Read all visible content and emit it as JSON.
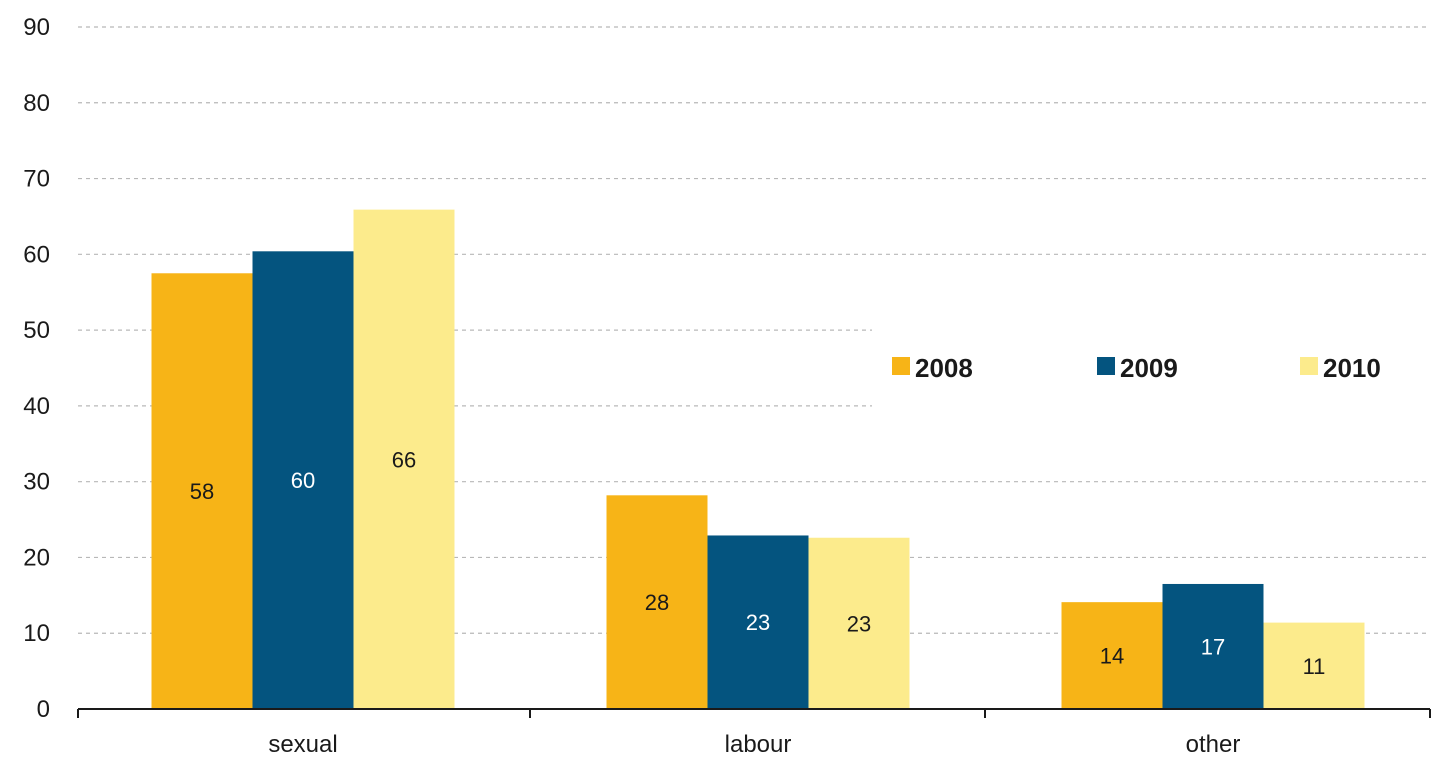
{
  "chart_data": {
    "type": "bar",
    "categories": [
      "sexual",
      "labour",
      "other"
    ],
    "series": [
      {
        "name": "2008",
        "color": "#F7B417",
        "label_color": "#1a1a1a",
        "values": [
          58,
          28,
          14
        ],
        "heights": [
          57.5,
          28.2,
          14.1
        ]
      },
      {
        "name": "2009",
        "color": "#04547F",
        "label_color": "#ffffff",
        "values": [
          60,
          23,
          17
        ],
        "heights": [
          60.4,
          22.9,
          16.5
        ]
      },
      {
        "name": "2010",
        "color": "#FCEB8C",
        "label_color": "#1a1a1a",
        "values": [
          66,
          23,
          11
        ],
        "heights": [
          65.9,
          22.6,
          11.4
        ]
      }
    ],
    "yticks": [
      0,
      10,
      20,
      30,
      40,
      50,
      60,
      70,
      80,
      90
    ],
    "ylim": [
      0,
      90
    ],
    "title": "",
    "xlabel": "",
    "ylabel": "",
    "grid": true,
    "legend_position": "right"
  }
}
